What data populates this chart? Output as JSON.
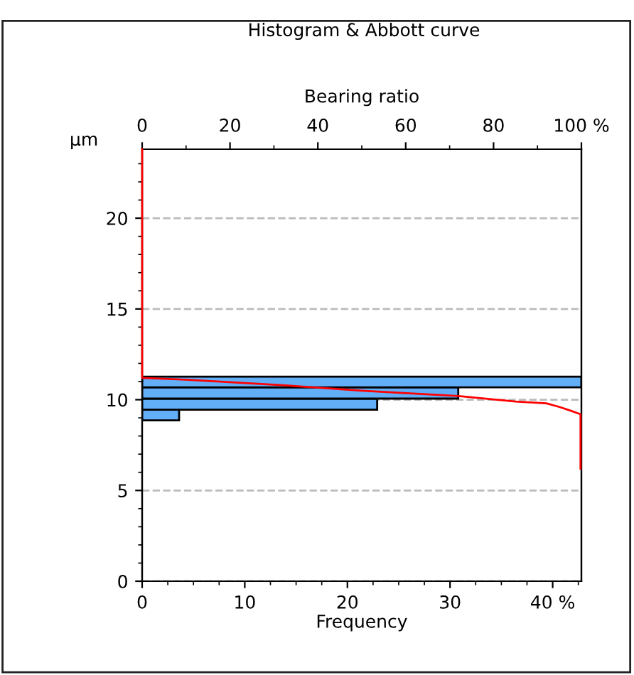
{
  "chart_data": {
    "type": "histogram",
    "orientation": "horizontal",
    "title": "Histogram & Abbott curve",
    "xlabel": "Frequency",
    "x2label": "Bearing ratio",
    "ylabel": "μm",
    "bins": [
      8.86,
      9.45,
      10.06,
      10.68,
      11.27
    ],
    "series": [
      {
        "color": "#62aef7",
        "values": [
          3.6,
          22.9,
          30.8,
          42.8
        ]
      },
      {
        "type": "line",
        "axis": "x2",
        "color": "#ff0000",
        "x": [
          23.8,
          11.2,
          11.1,
          10.8,
          10.5,
          10.2,
          9.9,
          9.8,
          9.6,
          9.4,
          9.2,
          6.2
        ],
        "values": [
          0,
          0,
          10,
          32,
          50,
          72,
          85,
          92,
          95,
          97.5,
          99.8,
          99.8
        ]
      }
    ],
    "xlim": [
      0,
      42.8
    ],
    "xticks": [
      0,
      10,
      20,
      30,
      {
        "value": 40,
        "label": "40 %"
      }
    ],
    "x2lim": [
      0,
      100
    ],
    "x2ticks": [
      0,
      20,
      40,
      60,
      80,
      {
        "value": 100,
        "label": "100 %"
      }
    ],
    "ylim": [
      0,
      23.8
    ],
    "yticks": [
      0,
      5,
      10,
      15,
      20
    ],
    "grid": "y"
  }
}
